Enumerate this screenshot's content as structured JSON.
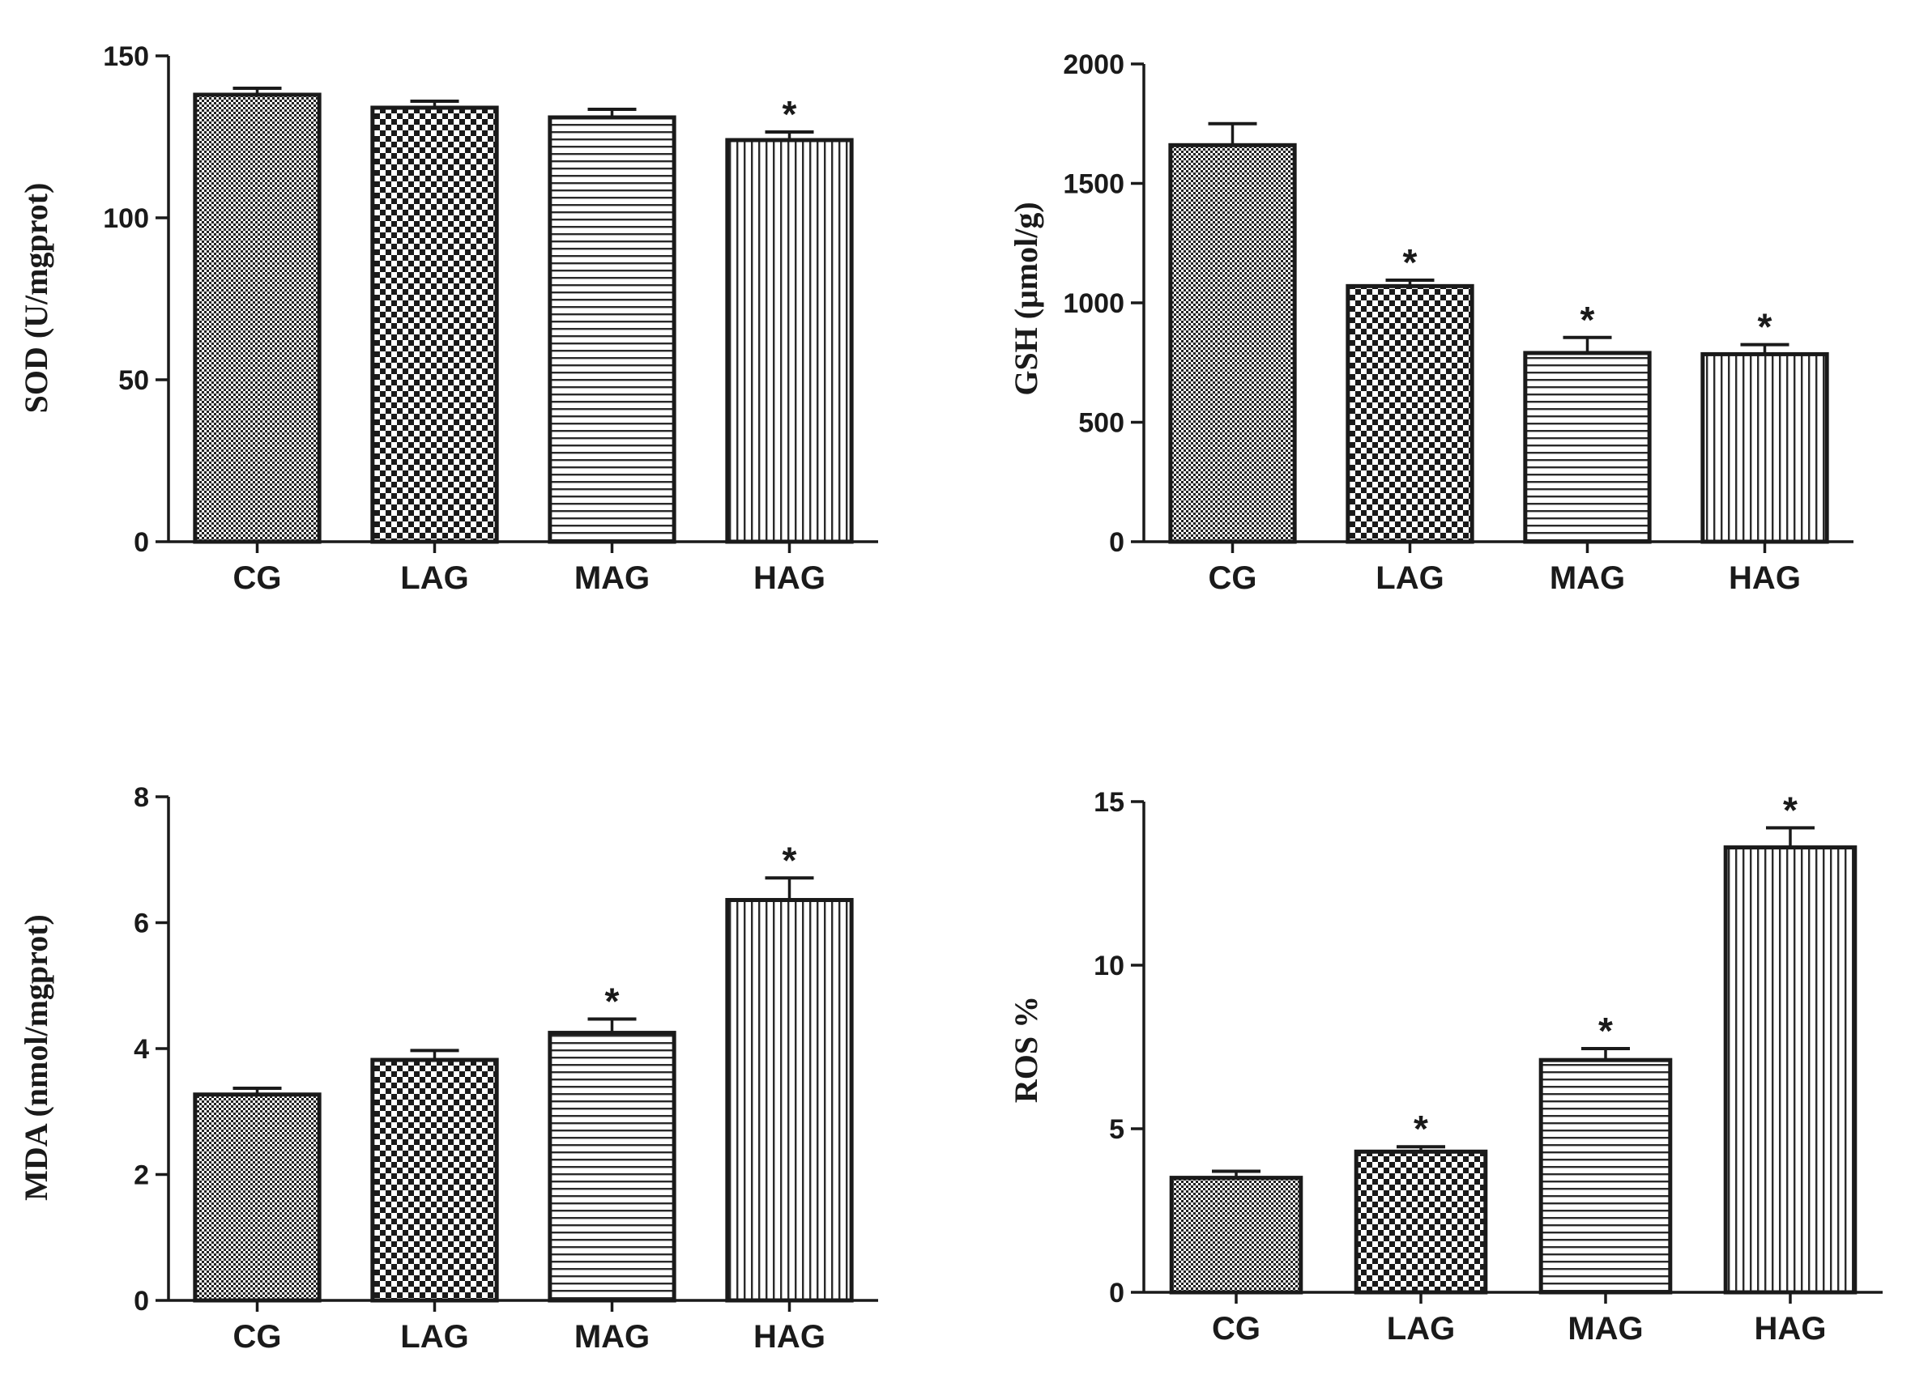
{
  "chart_data": [
    {
      "type": "bar",
      "ylabel": "SOD (U/mgprot)",
      "categories": [
        "CG",
        "LAG",
        "MAG",
        "HAG"
      ],
      "values": [
        138,
        134,
        131,
        124
      ],
      "errors": [
        2,
        2,
        2.5,
        2.5
      ],
      "significance": [
        "",
        "",
        "",
        "*"
      ],
      "ylim": [
        0,
        150
      ],
      "yticks": [
        0,
        50,
        100,
        150
      ],
      "patterns": [
        "fine-check",
        "check",
        "horizontal",
        "vertical"
      ]
    },
    {
      "type": "bar",
      "ylabel": "GSH (μmol/g)",
      "categories": [
        "CG",
        "LAG",
        "MAG",
        "HAG"
      ],
      "values": [
        1660,
        1070,
        790,
        785
      ],
      "errors": [
        90,
        25,
        65,
        40
      ],
      "significance": [
        "",
        "*",
        "*",
        "*"
      ],
      "ylim": [
        0,
        2000
      ],
      "yticks": [
        0,
        500,
        1000,
        1500,
        2000
      ],
      "patterns": [
        "fine-check",
        "check",
        "horizontal",
        "vertical"
      ]
    },
    {
      "type": "bar",
      "ylabel": "MDA (nmol/mgprot)",
      "categories": [
        "CG",
        "LAG",
        "MAG",
        "HAG"
      ],
      "values": [
        3.27,
        3.82,
        4.25,
        6.36
      ],
      "errors": [
        0.1,
        0.15,
        0.22,
        0.35
      ],
      "significance": [
        "",
        "",
        "*",
        "*"
      ],
      "ylim": [
        0,
        8
      ],
      "yticks": [
        0,
        2,
        4,
        6,
        8
      ],
      "patterns": [
        "fine-check",
        "check",
        "horizontal",
        "vertical"
      ]
    },
    {
      "type": "bar",
      "ylabel": "ROS %",
      "categories": [
        "CG",
        "LAG",
        "MAG",
        "HAG"
      ],
      "values": [
        3.5,
        4.3,
        7.1,
        13.6
      ],
      "errors": [
        0.2,
        0.15,
        0.35,
        0.6
      ],
      "significance": [
        "",
        "*",
        "*",
        "*"
      ],
      "ylim": [
        0,
        15
      ],
      "yticks": [
        0,
        5,
        10,
        15
      ],
      "patterns": [
        "fine-check",
        "check",
        "horizontal",
        "vertical"
      ]
    }
  ]
}
